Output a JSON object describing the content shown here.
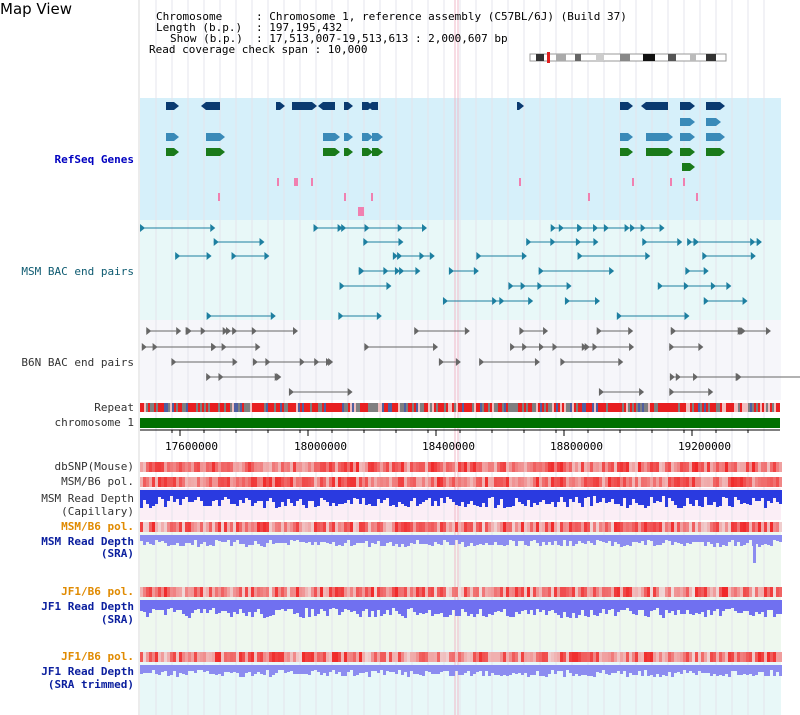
{
  "title": "Map View",
  "info": {
    "chromosome_key": "Chromosome",
    "chromosome_val": ": Chromosome 1, reference assembly (C57BL/6J) (Build 37)",
    "length_key": "Length (b.p.)",
    "length_val": ": 197,195,432",
    "show_key": "Show (b.p.)",
    "show_val": ": 17,513,007-19,513,613 : 2,000,607 bp",
    "coverage": "Read coverage check span : 10,000"
  },
  "tracks": {
    "refseq": "RefSeq Genes",
    "msm_bac": "MSM BAC end pairs",
    "b6n_bac": "B6N BAC end pairs",
    "repeat": "Repeat",
    "chromosome": "chromosome 1",
    "dbsnp": "dbSNP(Mouse)",
    "msm_b6_pol_1": "MSM/B6 pol.",
    "msm_depth_cap_1": "MSM Read Depth",
    "msm_depth_cap_2": "(Capillary)",
    "msm_b6_pol_2": "MSM/B6 pol.",
    "msm_depth_sra_1": "MSM Read Depth",
    "msm_depth_sra_2": "(SRA)",
    "jf1_b6_pol_1": "JF1/B6 pol.",
    "jf1_depth_sra_1": "JF1 Read Depth",
    "jf1_depth_sra_2": "(SRA)",
    "jf1_b6_pol_2": "JF1/B6 pol.",
    "jf1_depth_trim_1": "JF1 Read Depth",
    "jf1_depth_trim_2": "(SRA trimmed)"
  },
  "axis_ticks": [
    "17600000",
    "18000000",
    "18400000",
    "18800000",
    "19200000"
  ],
  "colors": {
    "refseq_bg": "#d6f0fa",
    "bac_bg": "#e8f8f8",
    "chromosome_bar": "#007000",
    "pol_red": "#e83030",
    "depth_blue": "#2a3ae0",
    "depth_light": "#8c8cf0"
  }
}
